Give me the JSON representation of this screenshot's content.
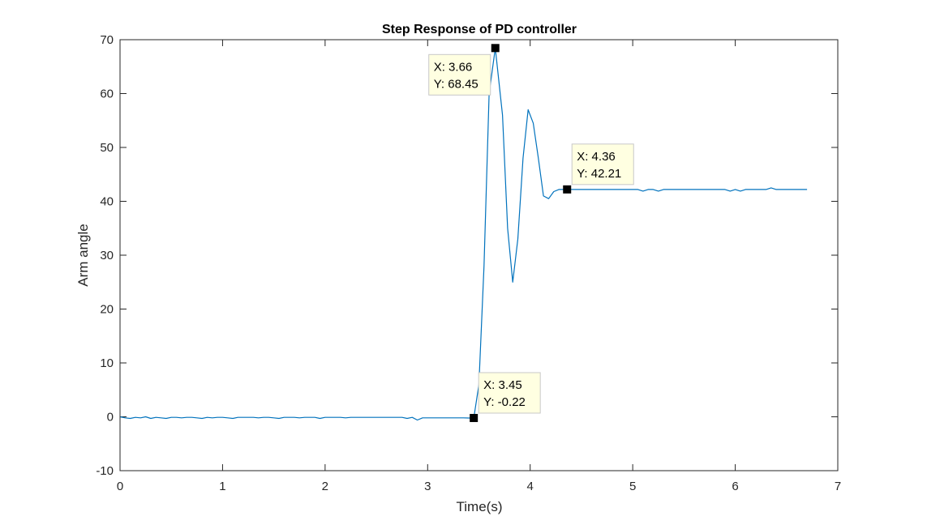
{
  "chart_data": {
    "type": "line",
    "title": "Step Response of PD controller",
    "xlabel": "Time(s)",
    "ylabel": "Arm angle",
    "xlim": [
      0,
      7
    ],
    "ylim": [
      -10,
      70
    ],
    "xticks": [
      0,
      1,
      2,
      3,
      4,
      5,
      6,
      7
    ],
    "yticks": [
      -10,
      0,
      10,
      20,
      30,
      40,
      50,
      60,
      70
    ],
    "grid": false,
    "series": [
      {
        "color": "#0072BD",
        "x": [
          0,
          0.05,
          0.1,
          0.15,
          0.2,
          0.25,
          0.3,
          0.35,
          0.4,
          0.45,
          0.5,
          0.55,
          0.6,
          0.65,
          0.7,
          0.75,
          0.8,
          0.85,
          0.9,
          0.95,
          1.0,
          1.05,
          1.1,
          1.15,
          1.2,
          1.25,
          1.3,
          1.35,
          1.4,
          1.45,
          1.5,
          1.55,
          1.6,
          1.65,
          1.7,
          1.75,
          1.8,
          1.85,
          1.9,
          1.95,
          2.0,
          2.05,
          2.1,
          2.15,
          2.2,
          2.25,
          2.3,
          2.35,
          2.4,
          2.45,
          2.5,
          2.55,
          2.6,
          2.65,
          2.7,
          2.75,
          2.8,
          2.85,
          2.9,
          2.95,
          3.0,
          3.05,
          3.1,
          3.15,
          3.2,
          3.25,
          3.3,
          3.35,
          3.4,
          3.45,
          3.5,
          3.55,
          3.6,
          3.66,
          3.73,
          3.78,
          3.83,
          3.88,
          3.93,
          3.98,
          4.03,
          4.08,
          4.13,
          4.18,
          4.23,
          4.28,
          4.36,
          4.45,
          4.55,
          4.65,
          4.75,
          4.85,
          4.95,
          5.05,
          5.1,
          5.15,
          5.2,
          5.25,
          5.3,
          5.4,
          5.5,
          5.6,
          5.7,
          5.8,
          5.9,
          5.95,
          6.0,
          6.05,
          6.1,
          6.2,
          6.3,
          6.35,
          6.4,
          6.5,
          6.6,
          6.7
        ],
        "y": [
          0,
          -0.2,
          -0.3,
          -0.1,
          -0.2,
          0,
          -0.3,
          -0.1,
          -0.2,
          -0.3,
          -0.1,
          -0.1,
          -0.2,
          -0.1,
          -0.1,
          -0.2,
          -0.3,
          -0.1,
          -0.2,
          -0.1,
          -0.1,
          -0.2,
          -0.3,
          -0.1,
          -0.1,
          -0.1,
          -0.1,
          -0.2,
          -0.1,
          -0.1,
          -0.2,
          -0.3,
          -0.1,
          -0.1,
          -0.1,
          -0.2,
          -0.1,
          -0.1,
          -0.1,
          -0.3,
          -0.1,
          -0.1,
          -0.1,
          -0.1,
          -0.2,
          -0.1,
          -0.1,
          -0.1,
          -0.1,
          -0.1,
          -0.1,
          -0.1,
          -0.1,
          -0.1,
          -0.1,
          -0.1,
          -0.3,
          -0.1,
          -0.6,
          -0.2,
          -0.2,
          -0.2,
          -0.2,
          -0.2,
          -0.2,
          -0.2,
          -0.2,
          -0.2,
          -0.22,
          -0.22,
          6,
          28,
          60,
          68.45,
          56,
          35,
          25,
          33,
          48,
          57,
          54.5,
          48,
          41,
          40.5,
          41.8,
          42.2,
          42.21,
          42.2,
          42.2,
          42.2,
          42.2,
          42.2,
          42.2,
          42.2,
          41.9,
          42.2,
          42.2,
          41.9,
          42.2,
          42.2,
          42.2,
          42.2,
          42.2,
          42.2,
          42.2,
          41.9,
          42.2,
          41.9,
          42.2,
          42.2,
          42.2,
          42.5,
          42.2,
          42.2,
          42.2,
          42.2
        ]
      }
    ],
    "datatips": [
      {
        "x": 3.66,
        "y": 68.45,
        "x_label": "X: 3.66",
        "y_label": "Y: 68.45",
        "side": "left"
      },
      {
        "x": 4.36,
        "y": 42.21,
        "x_label": "X: 4.36",
        "y_label": "Y: 42.21",
        "side": "right"
      },
      {
        "x": 3.45,
        "y": -0.22,
        "x_label": "X: 3.45",
        "y_label": "Y: -0.22",
        "side": "right"
      }
    ]
  }
}
